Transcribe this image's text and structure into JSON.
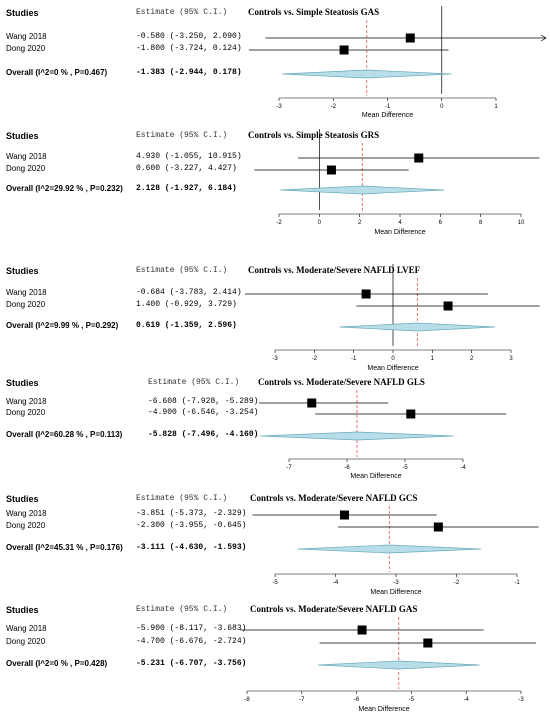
{
  "colors": {
    "diamond_fill": "#b7dde8",
    "diamond_stroke": "#6aaabb",
    "pooled_line": "#e05050",
    "square": "#000000",
    "line": "#000000"
  },
  "chart_data": [
    {
      "type": "forest",
      "title": "Controls vs. Simple Steatosis GAS",
      "header_studies": "Studies",
      "header_estimate": "Estimate (95% C.I.)",
      "xlabel": "Mean Difference",
      "xlim": [
        -3,
        1
      ],
      "ticks": [
        -3,
        -2,
        -1,
        0,
        1
      ],
      "null_line": 0,
      "studies": [
        {
          "name": "Wang 2018",
          "label": "-0.580 (-3.250, 2.090)",
          "est": -0.58,
          "lo": -3.25,
          "hi": 2.09
        },
        {
          "name": "Dong 2020",
          "label": "-1.800 (-3.724, 0.124)",
          "est": -1.8,
          "lo": -3.724,
          "hi": 0.124
        }
      ],
      "overall": {
        "name": "Overall (I^2=0 % , P=0.467)",
        "label": "-1.383 (-2.944, 0.178)",
        "est": -1.383,
        "lo": -2.944,
        "hi": 0.178
      }
    },
    {
      "type": "forest",
      "title": "Controls vs. Simple Steatosis GRS",
      "header_studies": "Studies",
      "header_estimate": "Estimate (95% C.I.)",
      "xlabel": "Mean Difference",
      "xlim": [
        -2,
        10
      ],
      "ticks": [
        -2,
        0,
        2,
        4,
        6,
        8,
        10
      ],
      "null_line": 0,
      "studies": [
        {
          "name": "Wang 2018",
          "label": "4.930 (-1.055, 10.915)",
          "est": 4.93,
          "lo": -1.055,
          "hi": 10.915
        },
        {
          "name": "Dong 2020",
          "label": "0.600 (-3.227, 4.427)",
          "est": 0.6,
          "lo": -3.227,
          "hi": 4.427
        }
      ],
      "overall": {
        "name": "Overall (I^2=29.92 % , P=0.232)",
        "label": "2.128 (-1.927, 6.184)",
        "est": 2.128,
        "lo": -1.927,
        "hi": 6.184
      }
    },
    {
      "type": "forest",
      "title": "Controls vs. Moderate/Severe NAFLD LVEF",
      "header_studies": "Studies",
      "header_estimate": "Estimate (95% C.I.)",
      "xlabel": "Mean Difference",
      "xlim": [
        -3,
        3
      ],
      "ticks": [
        -3,
        -2,
        -1,
        0,
        1,
        2,
        3
      ],
      "null_line": 0,
      "studies": [
        {
          "name": "Wang 2018",
          "label": "-0.684 (-3.783, 2.414)",
          "est": -0.684,
          "lo": -3.783,
          "hi": 2.414
        },
        {
          "name": "Dong 2020",
          "label": "1.400 (-0.929, 3.729)",
          "est": 1.4,
          "lo": -0.929,
          "hi": 3.729
        }
      ],
      "overall": {
        "name": "Overall (I^2=9.99 % , P=0.292)",
        "label": "0.619 (-1.359, 2.596)",
        "est": 0.619,
        "lo": -1.359,
        "hi": 2.596
      }
    },
    {
      "type": "forest",
      "title": "Controls vs. Moderate/Severe NAFLD GLS",
      "header_studies": "Studies",
      "header_estimate": "Estimate (95% C.I.)",
      "xlabel": "Mean Difference",
      "xlim": [
        -7,
        -4
      ],
      "ticks": [
        -7,
        -6,
        -5,
        -4
      ],
      "null_line": null,
      "studies": [
        {
          "name": "Wang 2018",
          "label": "-6.608 (-7.928, -5.289)",
          "est": -6.608,
          "lo": -7.928,
          "hi": -5.289
        },
        {
          "name": "Dong 2020",
          "label": "-4.900 (-6.546, -3.254)",
          "est": -4.9,
          "lo": -6.546,
          "hi": -3.254
        }
      ],
      "overall": {
        "name": "Overall (I^2=60.28 % , P=0.113)",
        "label": "-5.828 (-7.496, -4.160)",
        "est": -5.828,
        "lo": -7.496,
        "hi": -4.16
      }
    },
    {
      "type": "forest",
      "title": "Controls vs. Moderate/Severe NAFLD GCS",
      "header_studies": "Studies",
      "header_estimate": "Estimate (95% C.I.)",
      "xlabel": "Mean Difference",
      "xlim": [
        -5,
        -1
      ],
      "ticks": [
        -5,
        -4,
        -3,
        -2,
        -1
      ],
      "null_line": null,
      "studies": [
        {
          "name": "Wang 2018",
          "label": "-3.851 (-5.373, -2.329)",
          "est": -3.851,
          "lo": -5.373,
          "hi": -2.329
        },
        {
          "name": "Dong 2020",
          "label": "-2.300 (-3.955, -0.645)",
          "est": -2.3,
          "lo": -3.955,
          "hi": -0.645
        }
      ],
      "overall": {
        "name": "Overall (I^2=45.31 % , P=0.176)",
        "label": "-3.111 (-4.630, -1.593)",
        "est": -3.111,
        "lo": -4.63,
        "hi": -1.593
      }
    },
    {
      "type": "forest",
      "title": "Controls vs. Moderate/Severe NAFLD GAS",
      "header_studies": "Studies",
      "header_estimate": "Estimate (95% C.I.)",
      "xlabel": "Mean Difference",
      "xlim": [
        -8,
        -3
      ],
      "ticks": [
        -8,
        -7,
        -6,
        -5,
        -4,
        -3
      ],
      "null_line": null,
      "studies": [
        {
          "name": "Wang 2018",
          "label": "-5.900 (-8.117, -3.683)",
          "est": -5.9,
          "lo": -8.117,
          "hi": -3.683
        },
        {
          "name": "Dong 2020",
          "label": "-4.700 (-6.676, -2.724)",
          "est": -4.7,
          "lo": -6.676,
          "hi": -2.724
        }
      ],
      "overall": {
        "name": "Overall (I^2=0 % , P=0.428)",
        "label": "-5.231 (-6.707, -3.756)",
        "est": -5.231,
        "lo": -6.707,
        "hi": -3.756
      }
    }
  ]
}
